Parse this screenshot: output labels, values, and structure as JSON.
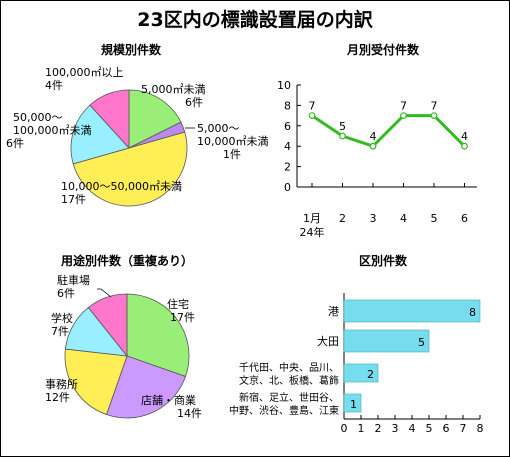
{
  "title": "23区内の標識設置届の内訳",
  "chart_data": [
    {
      "type": "pie",
      "title": "規模別件数",
      "slices": [
        {
          "label_lines": [
            "5,000㎡未満",
            "6件"
          ],
          "value": 6,
          "color": "#99ee77"
        },
        {
          "label_lines": [
            "5,000〜",
            "10,000㎡未満",
            "1件"
          ],
          "value": 1,
          "color": "#bb88ee"
        },
        {
          "label_lines": [
            "10,000〜50,000㎡未満",
            "17件"
          ],
          "value": 17,
          "color": "#ffee55"
        },
        {
          "label_lines": [
            "50,000〜",
            "100,000㎡未満",
            "6件"
          ],
          "value": 6,
          "color": "#99eeff"
        },
        {
          "label_lines": [
            "100,000㎡以上",
            "4件"
          ],
          "value": 4,
          "color": "#ff77cc"
        }
      ]
    },
    {
      "type": "line",
      "title": "月別受付件数",
      "x_labels": [
        "1月",
        "2",
        "3",
        "4",
        "5",
        "6"
      ],
      "x_sublabels": [
        "24年",
        "",
        "",
        "",
        "",
        ""
      ],
      "values": [
        7,
        5,
        4,
        7,
        7,
        4
      ],
      "ylim": [
        0,
        10
      ],
      "yticks": [
        0,
        2,
        4,
        6,
        8,
        10
      ],
      "grid": false,
      "color": "#33bb22"
    },
    {
      "type": "pie",
      "title": "用途別件数（重複あり）",
      "slices": [
        {
          "label_lines": [
            "住宅",
            "17件"
          ],
          "value": 17,
          "color": "#99ee77"
        },
        {
          "label_lines": [
            "店舗・商業",
            "14件"
          ],
          "value": 14,
          "color": "#cc99ff"
        },
        {
          "label_lines": [
            "事務所",
            "12件"
          ],
          "value": 12,
          "color": "#ffee55"
        },
        {
          "label_lines": [
            "学校",
            "7件"
          ],
          "value": 7,
          "color": "#99eeff"
        },
        {
          "label_lines": [
            "駐車場",
            "6件"
          ],
          "value": 6,
          "color": "#ff77cc"
        }
      ]
    },
    {
      "type": "bar",
      "orientation": "horizontal",
      "title": "区別件数",
      "categories": [
        {
          "label_lines": [
            "港"
          ],
          "value": 8
        },
        {
          "label_lines": [
            "大田"
          ],
          "value": 5
        },
        {
          "label_lines": [
            "千代田、中央、品川、",
            "文京、北、板橋、葛飾"
          ],
          "value": 2
        },
        {
          "label_lines": [
            "新宿、足立、世田谷、",
            "中野、渋谷、豊島、江東"
          ],
          "value": 1
        }
      ],
      "xlim": [
        0,
        8
      ],
      "xticks": [
        0,
        1,
        2,
        3,
        4,
        5,
        6,
        7,
        8
      ],
      "color": "#77ddee"
    }
  ]
}
